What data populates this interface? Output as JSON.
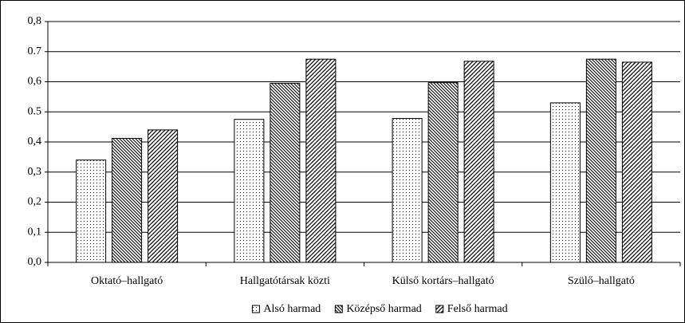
{
  "chart_data": {
    "type": "bar",
    "categories": [
      "Oktató–hallgató",
      "Hallgatótársak közti",
      "Külső kortárs–hallgató",
      "Szülő–hallgató"
    ],
    "series": [
      {
        "name": "Alsó harmad",
        "color": "#000000",
        "pattern": "dots",
        "values": [
          0.34,
          0.475,
          0.478,
          0.53
        ]
      },
      {
        "name": "Középső harmad",
        "color": "#000000",
        "pattern": "back-diagonal",
        "values": [
          0.412,
          0.595,
          0.597,
          0.675
        ]
      },
      {
        "name": "Felső harmad",
        "color": "#000000",
        "pattern": "diagonal",
        "values": [
          0.44,
          0.675,
          0.668,
          0.665
        ]
      }
    ],
    "ylim": [
      0,
      0.8
    ],
    "yticks": [
      {
        "value": 0,
        "label": "0,0"
      },
      {
        "value": 0.1,
        "label": "0,1"
      },
      {
        "value": 0.2,
        "label": "0,2"
      },
      {
        "value": 0.3,
        "label": "0,3"
      },
      {
        "value": 0.4,
        "label": "0,4"
      },
      0.5,
      {
        "value": 0.6,
        "label": "0,6"
      },
      0.7,
      {
        "value": 0.8,
        "label": "0,8"
      }
    ],
    "grid": true,
    "legend": "bottom"
  }
}
